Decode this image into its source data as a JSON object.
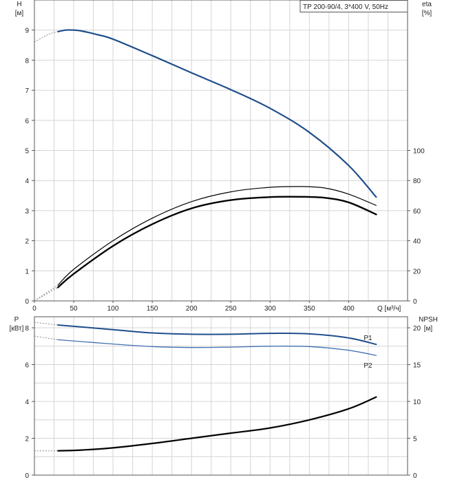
{
  "chart_data": [
    {
      "type": "line",
      "panel": "top",
      "model_label": "TP 200-90/4, 3*400 V, 50Hz",
      "left_axis": {
        "label": "H",
        "unit": "[м]",
        "range": [
          0,
          10
        ],
        "ticks": [
          0,
          1,
          2,
          3,
          4,
          5,
          6,
          7,
          8,
          9
        ]
      },
      "right_axis": {
        "label": "eta",
        "unit": "[%]",
        "range": [
          0,
          200
        ],
        "ticks": [
          0,
          20,
          40,
          60,
          80,
          100
        ]
      },
      "x_axis": {
        "label": "Q [м³/ч]",
        "range": [
          0,
          475
        ],
        "ticks": [
          0,
          50,
          100,
          150,
          200,
          250,
          300,
          350,
          400
        ]
      },
      "grid": true,
      "series": [
        {
          "key": "H",
          "axis": "left",
          "color": "#1f4e8c",
          "x": [
            30,
            40,
            50,
            60,
            80,
            100,
            150,
            200,
            250,
            300,
            350,
            400,
            435
          ],
          "y": [
            8.95,
            9.0,
            9.0,
            8.97,
            8.85,
            8.7,
            8.15,
            7.58,
            7.02,
            6.4,
            5.6,
            4.5,
            3.45
          ],
          "ext_x": [
            0,
            10,
            20,
            30
          ],
          "ext_y": [
            8.6,
            8.75,
            8.88,
            8.95
          ]
        },
        {
          "key": "eta_thin",
          "axis": "right",
          "color": "#000000",
          "x": [
            30,
            50,
            100,
            150,
            200,
            250,
            300,
            340,
            370,
            400,
            435
          ],
          "y": [
            10.5,
            21,
            40,
            55,
            66,
            72.5,
            75.5,
            76,
            75,
            71,
            63.5
          ],
          "ext_x": [
            0,
            30
          ],
          "ext_y": [
            0,
            10.5
          ]
        },
        {
          "key": "eta_thick",
          "axis": "right",
          "color": "#000000",
          "x": [
            30,
            50,
            100,
            150,
            200,
            250,
            300,
            340,
            370,
            400,
            435
          ],
          "y": [
            9,
            18,
            36.5,
            51,
            61.5,
            67,
            69,
            69.2,
            68.5,
            65.5,
            57.5
          ],
          "ext_x": [
            0,
            30
          ],
          "ext_y": [
            0,
            9
          ]
        }
      ]
    },
    {
      "type": "line",
      "panel": "bottom",
      "left_axis": {
        "label": "P",
        "unit": "[кВт]",
        "range": [
          0,
          8.6
        ],
        "ticks": [
          0,
          2,
          4,
          6,
          8
        ]
      },
      "right_axis": {
        "label": "NPSH",
        "unit": "[м]",
        "range": [
          0,
          21.5
        ],
        "ticks": [
          0,
          5,
          10,
          15,
          20
        ]
      },
      "x_axis": {
        "range": [
          0,
          475
        ]
      },
      "grid": true,
      "series": [
        {
          "key": "P1",
          "label": "P1",
          "axis": "left",
          "color": "#1f4e8c",
          "x": [
            30,
            100,
            150,
            200,
            250,
            300,
            350,
            400,
            435
          ],
          "y": [
            8.15,
            7.9,
            7.72,
            7.65,
            7.65,
            7.7,
            7.67,
            7.45,
            7.1
          ],
          "ext_x": [
            0,
            30
          ],
          "ext_y": [
            8.3,
            8.15
          ]
        },
        {
          "key": "P2",
          "label": "P2",
          "axis": "left",
          "color": "#3f70b0",
          "x": [
            30,
            100,
            150,
            200,
            250,
            300,
            350,
            400,
            435
          ],
          "y": [
            7.35,
            7.12,
            6.98,
            6.93,
            6.95,
            7.0,
            6.98,
            6.78,
            6.5
          ],
          "ext_x": [
            0,
            30
          ],
          "ext_y": [
            7.55,
            7.35
          ]
        },
        {
          "key": "NPSH",
          "axis": "right",
          "color": "#000000",
          "x": [
            30,
            60,
            100,
            150,
            200,
            250,
            300,
            350,
            400,
            435
          ],
          "y": [
            3.3,
            3.4,
            3.7,
            4.3,
            5.0,
            5.7,
            6.4,
            7.5,
            9.0,
            10.6
          ],
          "ext_x": [
            0,
            30
          ],
          "ext_y": [
            3.3,
            3.3
          ]
        }
      ]
    }
  ]
}
